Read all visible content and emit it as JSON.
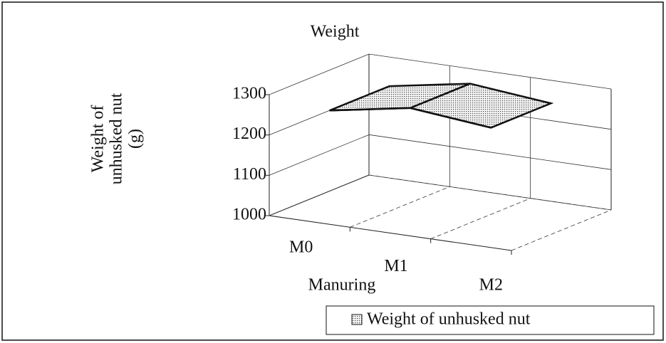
{
  "chart_data": {
    "type": "surface3d",
    "title": "Weight",
    "x_label": "Manuring",
    "y_label": [
      "Weight of",
      "unhusked nut",
      "(g)"
    ],
    "categories": [
      "M0",
      "M1",
      "M2"
    ],
    "series": [
      {
        "name": "Weight of unhusked nut",
        "color": "#d8d8d8",
        "values": [
          1255,
          1290,
          1270
        ]
      }
    ],
    "ylim": [
      1000,
      1300
    ],
    "yticks": [
      1000,
      1100,
      1200,
      1300
    ],
    "grid": true,
    "legend": "bottom-right"
  }
}
